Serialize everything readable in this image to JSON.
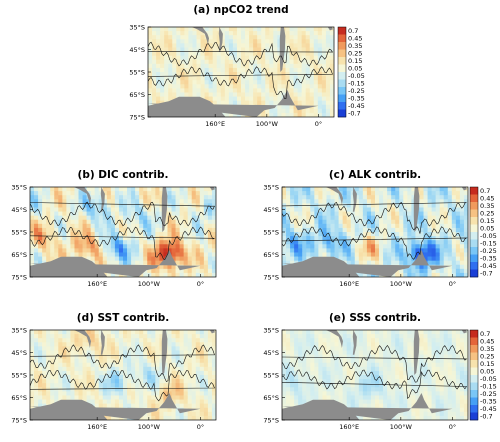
{
  "chart_data": [
    {
      "type": "heatmap",
      "title": "(a) npCO2 trend",
      "xticks": [
        "160°E",
        "100°W",
        "0°"
      ],
      "yticks": [
        "35°S",
        "45°S",
        "55°S",
        "65°S",
        "75°S"
      ],
      "colorbar_ticks": [
        "0.7",
        "0.45",
        "0.35",
        "0.25",
        "0.15",
        "0.05",
        "-0.05",
        "-0.15",
        "-0.25",
        "-0.35",
        "-0.45",
        "-0.7"
      ],
      "value_range": [
        -0.7,
        0.7
      ],
      "pattern": {
        "base": 0.06,
        "amp": 0.1,
        "anomalies": []
      }
    },
    {
      "type": "heatmap",
      "title": "(b) DIC contrib.",
      "xticks": [
        "160°E",
        "100°W",
        "0°"
      ],
      "yticks": [
        "35°S",
        "45°S",
        "55°S",
        "65°S",
        "75°S"
      ],
      "value_range": [
        -0.7,
        0.7
      ],
      "pattern": {
        "base": 0.05,
        "amp": 0.16,
        "anomalies": [
          {
            "lon": 160,
            "lat": -44,
            "val": -0.28
          },
          {
            "lon": 240,
            "lat": -48,
            "val": -0.2
          },
          {
            "lon": 20,
            "lat": -44,
            "val": -0.18
          },
          {
            "lon": 200,
            "lat": -62,
            "val": -0.38
          },
          {
            "lon": 300,
            "lat": -65,
            "val": 0.68
          },
          {
            "lon": 140,
            "lat": -62,
            "val": 0.32
          },
          {
            "lon": 55,
            "lat": -58,
            "val": 0.22
          }
        ]
      }
    },
    {
      "type": "heatmap",
      "title": "(c) ALK contrib.",
      "xticks": [
        "160°E",
        "100°W",
        "0°"
      ],
      "yticks": [
        "35°S",
        "45°S",
        "55°S",
        "65°S",
        "75°S"
      ],
      "colorbar_ticks": [
        "0.7",
        "0.45",
        "0.35",
        "0.25",
        "0.15",
        "0.05",
        "-0.05",
        "-0.15",
        "-0.25",
        "-0.35",
        "-0.45",
        "-0.7"
      ],
      "value_range": [
        -0.7,
        0.7
      ],
      "pattern": {
        "base": -0.05,
        "amp": 0.16,
        "anomalies": [
          {
            "lon": 300,
            "lat": -65,
            "val": -0.58
          },
          {
            "lon": 120,
            "lat": -60,
            "val": -0.28
          },
          {
            "lon": 200,
            "lat": -62,
            "val": 0.24
          },
          {
            "lon": 50,
            "lat": -60,
            "val": -0.22
          },
          {
            "lon": 220,
            "lat": -42,
            "val": 0.1
          }
        ]
      }
    },
    {
      "type": "heatmap",
      "title": "(d) SST contrib.",
      "xticks": [
        "160°E",
        "100°W",
        "0°"
      ],
      "yticks": [
        "35°S",
        "45°S",
        "55°S",
        "65°S",
        "75°S"
      ],
      "value_range": [
        -0.7,
        0.7
      ],
      "pattern": {
        "base": 0.05,
        "amp": 0.1,
        "anomalies": [
          {
            "lon": 200,
            "lat": -58,
            "val": -0.2
          },
          {
            "lon": 260,
            "lat": -55,
            "val": -0.16
          },
          {
            "lon": 300,
            "lat": -64,
            "val": 0.18
          },
          {
            "lon": 140,
            "lat": -40,
            "val": 0.16
          }
        ]
      }
    },
    {
      "type": "heatmap",
      "title": "(e) SSS contrib.",
      "xticks": [
        "160°E",
        "100°W",
        "0°"
      ],
      "yticks": [
        "35°S",
        "45°S",
        "55°S",
        "65°S",
        "75°S"
      ],
      "colorbar_ticks": [
        "0.7",
        "0.45",
        "0.35",
        "0.25",
        "0.15",
        "0.05",
        "-0.05",
        "-0.15",
        "-0.25",
        "-0.35",
        "-0.45",
        "-0.7"
      ],
      "value_range": [
        -0.7,
        0.7
      ],
      "pattern": {
        "base": 0.0,
        "amp": 0.06,
        "anomalies": [
          {
            "lon": 200,
            "lat": -60,
            "val": -0.14
          },
          {
            "lon": 60,
            "lat": -58,
            "val": -0.1
          }
        ]
      }
    }
  ],
  "colors": {
    "land": "#8c8c8c",
    "front_line": "#111111",
    "scale": [
      "#1a3fd6",
      "#2f6ff0",
      "#46a0f5",
      "#79c6f6",
      "#a9dcf2",
      "#d3eef0",
      "#f6f6d6",
      "#f7e3ad",
      "#f6c283",
      "#f09a5d",
      "#e4653a",
      "#c62b1f"
    ]
  }
}
